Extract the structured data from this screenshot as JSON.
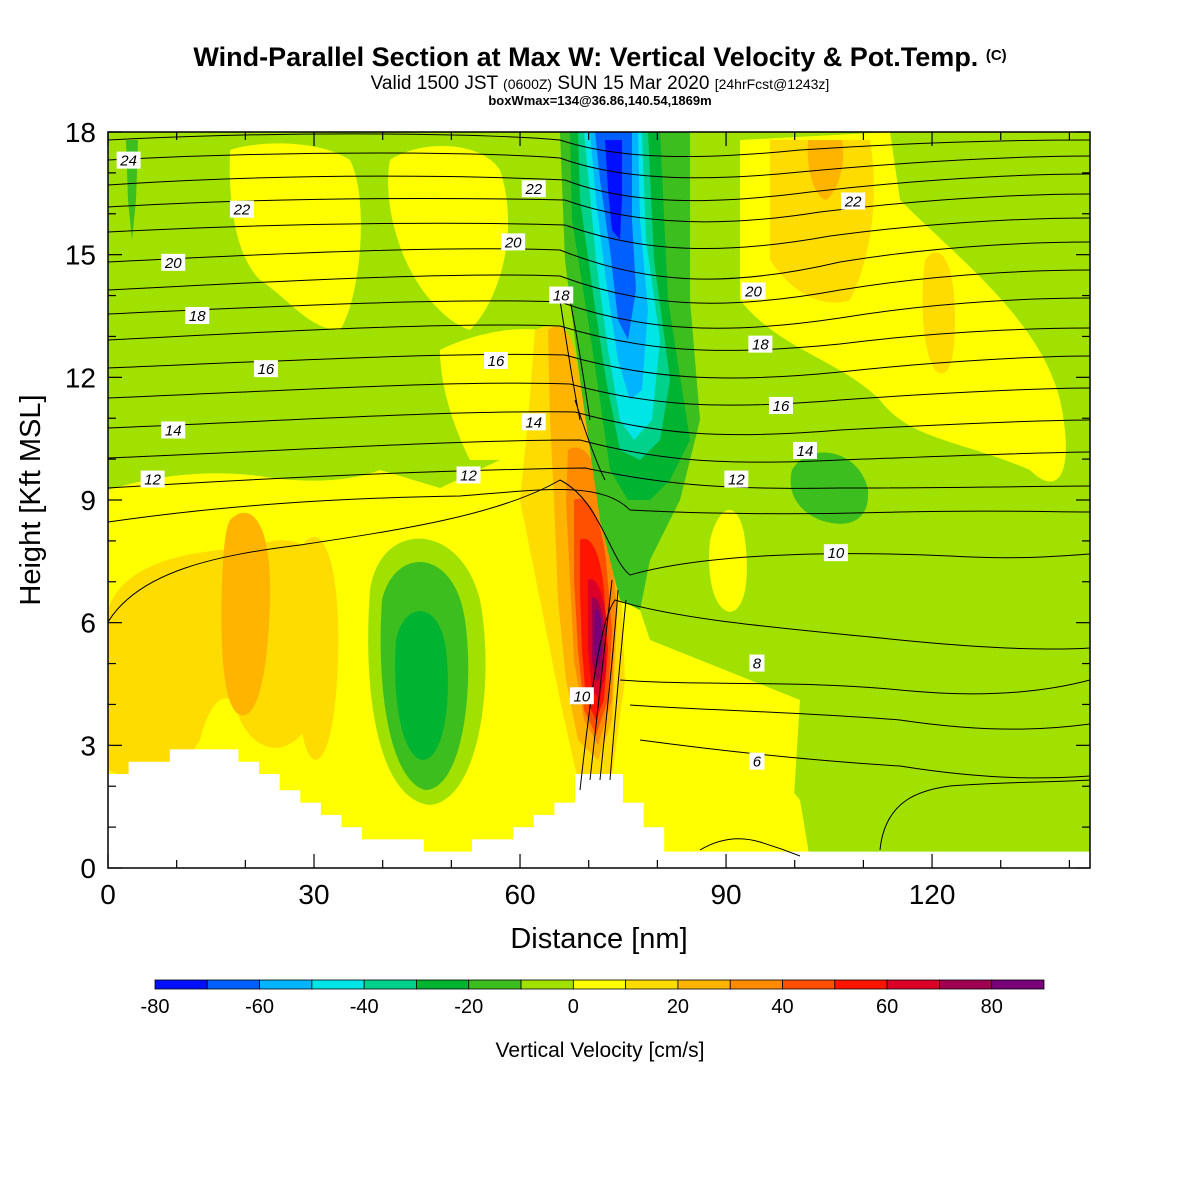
{
  "header": {
    "title": "Wind-Parallel Section at Max W: Vertical Velocity & Pot.Temp.",
    "title_mark": "(C)",
    "valid_prefix": "Valid 1500 JST",
    "valid_utc": "(0600Z)",
    "valid_date": "SUN 15 Mar 2020",
    "valid_fcst": "[24hrFcst@1243z]",
    "box_info": "boxWmax=134@36.86,140.54,1869m"
  },
  "chart_data": {
    "type": "heatmap",
    "title": "Wind-Parallel Section at Max W: Vertical Velocity & Pot.Temp.",
    "xlabel": "Distance [nm]",
    "ylabel": "Height [Kft MSL]",
    "xlim": [
      0,
      143
    ],
    "ylim": [
      0,
      18
    ],
    "x_ticks": [
      0,
      30,
      60,
      90,
      120
    ],
    "y_ticks": [
      0,
      3,
      6,
      9,
      12,
      15,
      18
    ],
    "grid": false,
    "colorbar": {
      "title": "Vertical Velocity [cm/s]",
      "placement": "bottom",
      "tick_values": [
        -80,
        -60,
        -40,
        -20,
        0,
        20,
        40,
        60,
        80
      ],
      "tick_labels": [
        "-80",
        "-60",
        "-40",
        "-20",
        "0",
        "20",
        "40",
        "60",
        "80"
      ],
      "levels": [
        -80,
        -70,
        -60,
        -50,
        -40,
        -30,
        -20,
        -10,
        0,
        10,
        20,
        30,
        40,
        50,
        60,
        70,
        80,
        90
      ],
      "colors": [
        "#0010ff",
        "#0060ff",
        "#00b4ff",
        "#00e6e6",
        "#00d28c",
        "#00b432",
        "#3cbe1e",
        "#a0e100",
        "#ffff00",
        "#ffdc00",
        "#ffb400",
        "#ff8c00",
        "#ff5000",
        "#ff1400",
        "#dc0028",
        "#a00050",
        "#780078"
      ]
    },
    "theta_contour_labels": [
      {
        "text": "24",
        "x": 3,
        "y": 17.3
      },
      {
        "text": "22",
        "x": 19.5,
        "y": 16.1
      },
      {
        "text": "22",
        "x": 62,
        "y": 16.6
      },
      {
        "text": "22",
        "x": 108.5,
        "y": 16.3
      },
      {
        "text": "20",
        "x": 9.5,
        "y": 14.8
      },
      {
        "text": "20",
        "x": 59,
        "y": 15.3
      },
      {
        "text": "20",
        "x": 94,
        "y": 14.1
      },
      {
        "text": "18",
        "x": 13,
        "y": 13.5
      },
      {
        "text": "18",
        "x": 66,
        "y": 14.0
      },
      {
        "text": "18",
        "x": 95,
        "y": 12.8
      },
      {
        "text": "16",
        "x": 23,
        "y": 12.2
      },
      {
        "text": "16",
        "x": 56.5,
        "y": 12.4
      },
      {
        "text": "16",
        "x": 98,
        "y": 11.3
      },
      {
        "text": "14",
        "x": 9.5,
        "y": 10.7
      },
      {
        "text": "14",
        "x": 62,
        "y": 10.9
      },
      {
        "text": "14",
        "x": 101.5,
        "y": 10.2
      },
      {
        "text": "12",
        "x": 6.5,
        "y": 9.5
      },
      {
        "text": "12",
        "x": 52.5,
        "y": 9.6
      },
      {
        "text": "12",
        "x": 91.5,
        "y": 9.5
      },
      {
        "text": "10",
        "x": 106,
        "y": 7.7
      },
      {
        "text": "10",
        "x": 69,
        "y": 4.2
      },
      {
        "text": "8",
        "x": 94.5,
        "y": 5.0
      },
      {
        "text": "6",
        "x": 94.5,
        "y": 2.6
      }
    ],
    "terrain_profile": [
      [
        0,
        2.3
      ],
      [
        3,
        2.3
      ],
      [
        3,
        2.6
      ],
      [
        9,
        2.6
      ],
      [
        9,
        2.9
      ],
      [
        19,
        2.9
      ],
      [
        19,
        2.6
      ],
      [
        22,
        2.6
      ],
      [
        22,
        2.3
      ],
      [
        25,
        2.3
      ],
      [
        25,
        1.9
      ],
      [
        28,
        1.9
      ],
      [
        28,
        1.6
      ],
      [
        31,
        1.6
      ],
      [
        31,
        1.3
      ],
      [
        34,
        1.3
      ],
      [
        34,
        1.0
      ],
      [
        37,
        1.0
      ],
      [
        37,
        0.7
      ],
      [
        46,
        0.7
      ],
      [
        46,
        0.4
      ],
      [
        53,
        0.4
      ],
      [
        53,
        0.7
      ],
      [
        59,
        0.7
      ],
      [
        59,
        1.0
      ],
      [
        62,
        1.0
      ],
      [
        62,
        1.3
      ],
      [
        65,
        1.3
      ],
      [
        65,
        1.6
      ],
      [
        68,
        1.6
      ],
      [
        68,
        2.3
      ],
      [
        75,
        2.3
      ],
      [
        75,
        1.6
      ],
      [
        78,
        1.6
      ],
      [
        78,
        1.0
      ],
      [
        81,
        1.0
      ],
      [
        81,
        0.4
      ],
      [
        143,
        0.4
      ]
    ]
  }
}
